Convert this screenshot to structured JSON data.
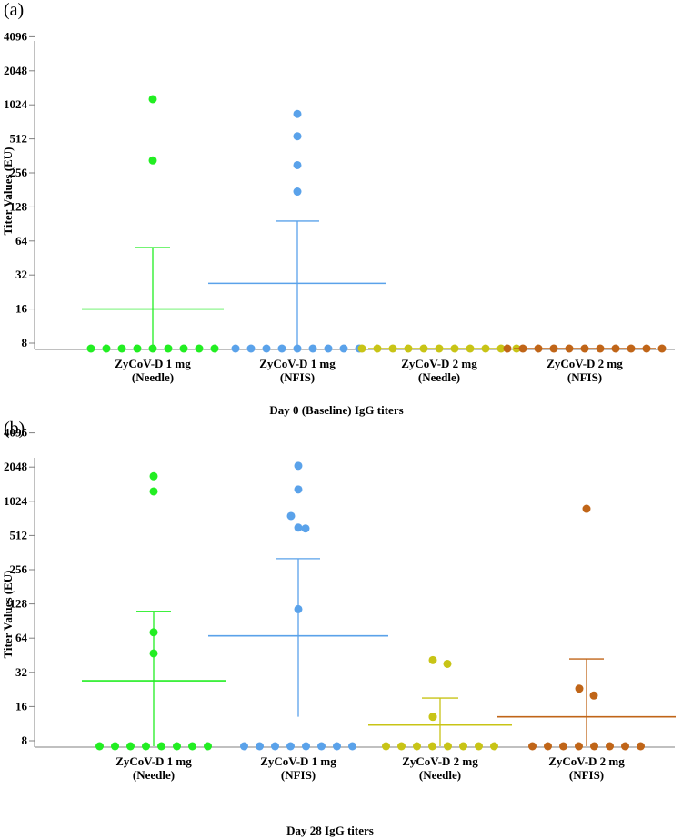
{
  "chart_data": [
    {
      "type": "scatter",
      "panel_label": "(a)",
      "title": "Day 0 (Baseline) IgG titers",
      "ylabel": "Titer Values (EU)",
      "yscale": "log2",
      "ylim": [
        7,
        4096
      ],
      "yticks": [
        "8",
        "16",
        "32",
        "64",
        "128",
        "256",
        "512",
        "1024",
        "2048",
        "4096"
      ],
      "groups": [
        {
          "name": "ZyCoV-D 1 mg",
          "sub": "(Needle)",
          "color": "#22ee22",
          "mean": 16,
          "upper": 56,
          "lower": 7,
          "points": [
            7,
            7,
            7,
            7,
            7,
            7,
            7,
            7,
            7,
            1150,
            330
          ]
        },
        {
          "name": "ZyCoV-D 1 mg",
          "sub": "(NFIS)",
          "color": "#5aa2ea",
          "mean": 27,
          "upper": 96,
          "lower": 7,
          "points": [
            7,
            7,
            7,
            7,
            7,
            7,
            7,
            7,
            7,
            850,
            540,
            300,
            175
          ]
        },
        {
          "name": "ZyCoV-D 2 mg",
          "sub": "(Needle)",
          "color": "#c8c416",
          "mean": 7,
          "upper": 7,
          "lower": 7,
          "points": [
            7,
            7,
            7,
            7,
            7,
            7,
            7,
            7,
            7,
            7,
            7
          ]
        },
        {
          "name": "ZyCoV-D 2 mg",
          "sub": "(NFIS)",
          "color": "#c06518",
          "mean": 7,
          "upper": 7,
          "lower": 7,
          "points": [
            7,
            7,
            7,
            7,
            7,
            7,
            7,
            7,
            7,
            7,
            7
          ]
        }
      ]
    },
    {
      "type": "scatter",
      "panel_label": "(b)",
      "title": "Day 28 IgG titers",
      "ylabel": "Titer Values (EU)",
      "yscale": "log2",
      "ylim": [
        7,
        4096
      ],
      "yticks": [
        "8",
        "16",
        "32",
        "64",
        "128",
        "256",
        "512",
        "1024",
        "2048",
        "4096"
      ],
      "groups": [
        {
          "name": "ZyCoV-D 1 mg",
          "sub": "(Needle)",
          "color": "#22ee22",
          "mean": 27,
          "upper": 110,
          "lower": 7,
          "points": [
            7,
            7,
            7,
            7,
            7,
            7,
            7,
            7,
            1700,
            1250,
            72,
            47
          ]
        },
        {
          "name": "ZyCoV-D 1 mg",
          "sub": "(NFIS)",
          "color": "#5aa2ea",
          "mean": 67,
          "upper": 320,
          "lower": 13,
          "points": [
            7,
            7,
            7,
            7,
            7,
            7,
            7,
            7,
            2100,
            1300,
            760,
            600,
            590,
            115
          ]
        },
        {
          "name": "ZyCoV-D 2 mg",
          "sub": "(Needle)",
          "color": "#c8c416",
          "mean": 11,
          "upper": 19,
          "lower": 7,
          "points": [
            7,
            7,
            7,
            7,
            7,
            7,
            7,
            7,
            41,
            38,
            13,
            13
          ]
        },
        {
          "name": "ZyCoV-D 2 mg",
          "sub": "(NFIS)",
          "color": "#c06518",
          "mean": 13,
          "upper": 42,
          "lower": 7,
          "points": [
            7,
            7,
            7,
            7,
            7,
            7,
            7,
            7,
            880,
            23,
            20
          ]
        }
      ]
    }
  ]
}
